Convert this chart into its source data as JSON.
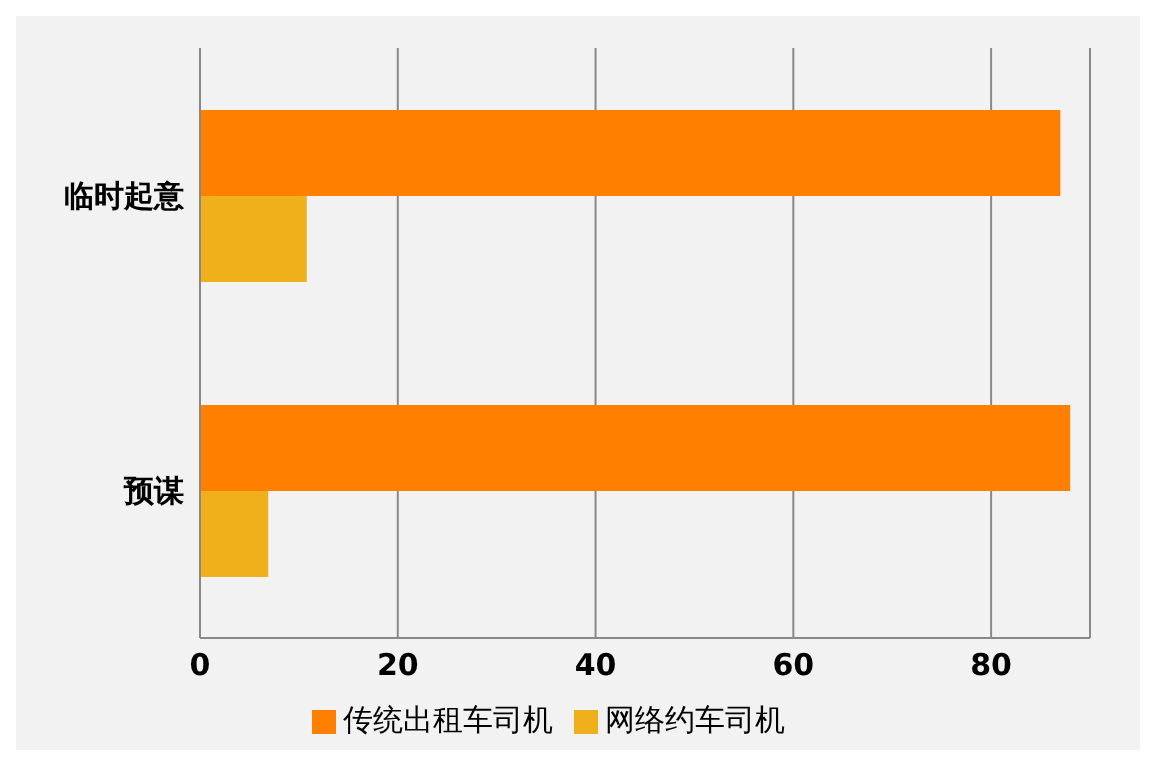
{
  "chart_data": {
    "type": "bar",
    "orientation": "horizontal",
    "categories": [
      "临时起意",
      "预谋"
    ],
    "series": [
      {
        "name": "传统出租车司机",
        "color": "#ff8000",
        "values": [
          87,
          88
        ]
      },
      {
        "name": "网络约车司机",
        "color": "#f0b01c",
        "values": [
          10.8,
          6.9
        ]
      }
    ],
    "xlim": [
      0,
      90
    ],
    "xticks": [
      0,
      20,
      40,
      60,
      80
    ],
    "grid": "x",
    "legend": "bottom"
  }
}
